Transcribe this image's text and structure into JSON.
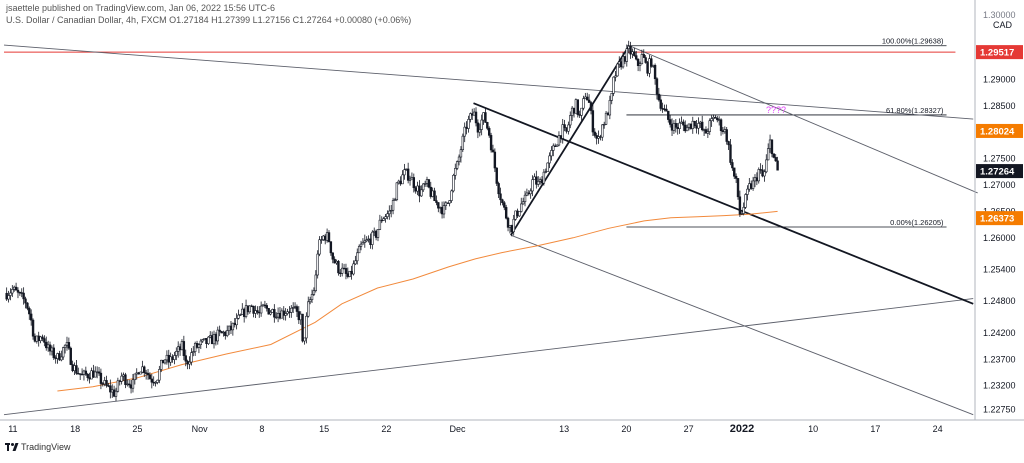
{
  "header": {
    "publisher_line": "jsaettele published on TradingView.com, Jan 06, 2022 15:56 UTC-6",
    "symbol_line": "U.S. Dollar / Canadian Dollar, 4h, FXCM  O1.27184  H1.27399  L1.27156  C1.27264  +0.00080 (+0.06%)",
    "currency": "CAD",
    "top_cut_label": "1.30000"
  },
  "footer": {
    "brand": "TradingView",
    "logo_icon": "tradingview-logo-icon"
  },
  "colors": {
    "candle": "#131722",
    "ma": "#f28a3c",
    "red_level": "#e53935",
    "orange_level": "#f57c00",
    "current_price": "#131722",
    "question": "#e040fb",
    "axis_text": "#131722"
  },
  "chart_data": {
    "type": "candlestick",
    "title": "",
    "symbol": "U.S. Dollar / Canadian Dollar",
    "timeframe": "4h",
    "ylim": [
      1.225,
      1.3
    ],
    "y_ticks": [
      "1.29000",
      "1.28500",
      "1.27500",
      "1.27000",
      "1.26500",
      "1.26000",
      "1.25400",
      "1.24800",
      "1.24200",
      "1.23700",
      "1.23200",
      "1.22750"
    ],
    "y_tick_values": [
      1.29,
      1.285,
      1.275,
      1.27,
      1.265,
      1.26,
      1.254,
      1.248,
      1.242,
      1.237,
      1.232,
      1.2275
    ],
    "x_ticks": [
      "11",
      "18",
      "25",
      "Nov",
      "8",
      "15",
      "22",
      "Dec",
      "13",
      "20",
      "27",
      "2022",
      "10",
      "17",
      "24"
    ],
    "x_tick_days": [
      11,
      18,
      25,
      32,
      39,
      46,
      53,
      61,
      73,
      80,
      87,
      93,
      101,
      108,
      115
    ],
    "x_bold_tick": "2022",
    "price_labels": [
      {
        "value": 1.29517,
        "label": "1.29517",
        "kind": "red"
      },
      {
        "value": 1.28024,
        "label": "1.28024",
        "kind": "orange"
      },
      {
        "value": 1.27264,
        "label": "1.27264",
        "kind": "current"
      },
      {
        "value": 1.26373,
        "label": "1.26373",
        "kind": "orange"
      }
    ],
    "horizontal_levels": [
      {
        "value": 1.29517,
        "from_day": 10,
        "to_day": 117,
        "kind": "red"
      },
      {
        "value": 1.29638,
        "from_day": 80,
        "to_day": 116,
        "label": "100.00%(1.29638)"
      },
      {
        "value": 1.28327,
        "from_day": 80,
        "to_day": 116,
        "label": "61.80%(1.28327)"
      },
      {
        "value": 1.26205,
        "from_day": 80,
        "to_day": 116,
        "label": "0.00%(1.26205)"
      }
    ],
    "annotation": {
      "text": "????",
      "day": 95.7,
      "price": 1.2825
    },
    "trendlines": [
      {
        "p1": [
          10,
          1.2965
        ],
        "p2": [
          119,
          1.2825
        ],
        "weight": "thin"
      },
      {
        "p1": [
          10,
          1.2265
        ],
        "p2": [
          119,
          1.2485
        ],
        "weight": "thin"
      },
      {
        "p1": [
          80.3,
          1.2964
        ],
        "p2": [
          119.5,
          1.2685
        ],
        "weight": "thin"
      },
      {
        "p1": [
          67,
          1.2605
        ],
        "p2": [
          119,
          1.2265
        ],
        "weight": "thin"
      },
      {
        "p1": [
          62.8,
          1.2855
        ],
        "p2": [
          119,
          1.2475
        ],
        "weight": "bold"
      },
      {
        "p1": [
          67,
          1.2605
        ],
        "p2": [
          80.3,
          1.2964
        ],
        "weight": "bold"
      }
    ],
    "candle_count": 410,
    "candles_path": [
      [
        10.3,
        1.2495
      ],
      [
        11,
        1.2502
      ],
      [
        12.5,
        1.2478
      ],
      [
        13,
        1.2448
      ],
      [
        13.5,
        1.2402
      ],
      [
        14.3,
        1.2415
      ],
      [
        15,
        1.2388
      ],
      [
        16,
        1.2372
      ],
      [
        17,
        1.2398
      ],
      [
        17.8,
        1.2355
      ],
      [
        18.8,
        1.2338
      ],
      [
        20.1,
        1.2345
      ],
      [
        21.5,
        1.2318
      ],
      [
        22.5,
        1.2305
      ],
      [
        23.2,
        1.2338
      ],
      [
        24.5,
        1.2322
      ],
      [
        25.2,
        1.2355
      ],
      [
        25.9,
        1.2352
      ],
      [
        26.5,
        1.2332
      ],
      [
        27.2,
        1.2335
      ],
      [
        28,
        1.2372
      ],
      [
        28.6,
        1.2365
      ],
      [
        29.2,
        1.2378
      ],
      [
        30.1,
        1.2395
      ],
      [
        30.4,
        1.236
      ],
      [
        31.5,
        1.2392
      ],
      [
        32.2,
        1.2398
      ],
      [
        33.1,
        1.2404
      ],
      [
        34,
        1.2415
      ],
      [
        35.2,
        1.2422
      ],
      [
        36.1,
        1.2438
      ],
      [
        37,
        1.246
      ],
      [
        37.8,
        1.2472
      ],
      [
        38.7,
        1.2455
      ],
      [
        39.2,
        1.2468
      ],
      [
        40,
        1.2462
      ],
      [
        41.2,
        1.2458
      ],
      [
        42,
        1.2465
      ],
      [
        42.7,
        1.246
      ],
      [
        43.4,
        1.2448
      ],
      [
        43.6,
        1.2392
      ],
      [
        44.2,
        1.247
      ],
      [
        45,
        1.251
      ],
      [
        45.3,
        1.258
      ],
      [
        46,
        1.2605
      ],
      [
        46.5,
        1.26
      ],
      [
        47,
        1.256
      ],
      [
        47.6,
        1.2542
      ],
      [
        48.2,
        1.2535
      ],
      [
        48.8,
        1.2522
      ],
      [
        49.5,
        1.2555
      ],
      [
        50.2,
        1.2585
      ],
      [
        51,
        1.2595
      ],
      [
        51.8,
        1.2605
      ],
      [
        52.5,
        1.2638
      ],
      [
        53.5,
        1.265
      ],
      [
        54.2,
        1.2698
      ],
      [
        55,
        1.2722
      ],
      [
        55.6,
        1.2718
      ],
      [
        56.2,
        1.27
      ],
      [
        56.8,
        1.2685
      ],
      [
        57.5,
        1.2702
      ],
      [
        58.5,
        1.2668
      ],
      [
        59.5,
        1.2652
      ],
      [
        60,
        1.267
      ],
      [
        60.6,
        1.272
      ],
      [
        61,
        1.2738
      ],
      [
        61.5,
        1.2778
      ],
      [
        62,
        1.2812
      ],
      [
        62.8,
        1.2838
      ],
      [
        63.3,
        1.281
      ],
      [
        64,
        1.283
      ],
      [
        64.6,
        1.2795
      ],
      [
        65,
        1.2755
      ],
      [
        65.5,
        1.2702
      ],
      [
        66,
        1.2668
      ],
      [
        66.5,
        1.264
      ],
      [
        67,
        1.2615
      ],
      [
        67.5,
        1.264
      ],
      [
        68.2,
        1.2665
      ],
      [
        68.8,
        1.2675
      ],
      [
        69.5,
        1.271
      ],
      [
        70.2,
        1.27
      ],
      [
        70.8,
        1.2728
      ],
      [
        71.5,
        1.2755
      ],
      [
        72.2,
        1.2785
      ],
      [
        72.8,
        1.2805
      ],
      [
        73.2,
        1.2795
      ],
      [
        73.8,
        1.2838
      ],
      [
        74.3,
        1.2852
      ],
      [
        74.8,
        1.2825
      ],
      [
        75.4,
        1.2875
      ],
      [
        75.8,
        1.2855
      ],
      [
        76.2,
        1.2812
      ],
      [
        76.8,
        1.278
      ],
      [
        77.2,
        1.281
      ],
      [
        77.7,
        1.2828
      ],
      [
        78.3,
        1.286
      ],
      [
        78.6,
        1.2902
      ],
      [
        79,
        1.292
      ],
      [
        79.5,
        1.2935
      ],
      [
        80.3,
        1.2955
      ],
      [
        80.8,
        1.2945
      ],
      [
        81.2,
        1.2925
      ],
      [
        81.8,
        1.2945
      ],
      [
        82.3,
        1.292
      ],
      [
        82.8,
        1.2935
      ],
      [
        83.2,
        1.29
      ],
      [
        83.6,
        1.2865
      ],
      [
        84.2,
        1.2842
      ],
      [
        84.8,
        1.282
      ],
      [
        85.5,
        1.2808
      ],
      [
        86.2,
        1.2815
      ],
      [
        86.8,
        1.2808
      ],
      [
        87.5,
        1.282
      ],
      [
        88.2,
        1.2815
      ],
      [
        88.8,
        1.2795
      ],
      [
        89.3,
        1.2812
      ],
      [
        90,
        1.283
      ],
      [
        90.6,
        1.2812
      ],
      [
        91.2,
        1.2798
      ],
      [
        91.6,
        1.276
      ],
      [
        92,
        1.2722
      ],
      [
        92.4,
        1.27
      ],
      [
        92.8,
        1.264
      ],
      [
        93.2,
        1.266
      ],
      [
        93.8,
        1.2695
      ],
      [
        94.4,
        1.2705
      ],
      [
        94.9,
        1.2728
      ],
      [
        95.4,
        1.2712
      ],
      [
        95.9,
        1.276
      ],
      [
        96.2,
        1.2785
      ],
      [
        96.6,
        1.2748
      ],
      [
        97,
        1.2726
      ]
    ],
    "moving_average": [
      [
        16,
        1.231
      ],
      [
        20,
        1.2318
      ],
      [
        25,
        1.2335
      ],
      [
        30,
        1.236
      ],
      [
        35,
        1.238
      ],
      [
        40,
        1.2398
      ],
      [
        45,
        1.244
      ],
      [
        48,
        1.2475
      ],
      [
        52,
        1.2505
      ],
      [
        56,
        1.2522
      ],
      [
        60,
        1.2545
      ],
      [
        63,
        1.256
      ],
      [
        66,
        1.2572
      ],
      [
        70,
        1.2585
      ],
      [
        74,
        1.26
      ],
      [
        78,
        1.2618
      ],
      [
        82,
        1.2632
      ],
      [
        85,
        1.2638
      ],
      [
        88,
        1.264
      ],
      [
        91,
        1.2642
      ],
      [
        94,
        1.2645
      ],
      [
        97,
        1.265
      ]
    ]
  }
}
